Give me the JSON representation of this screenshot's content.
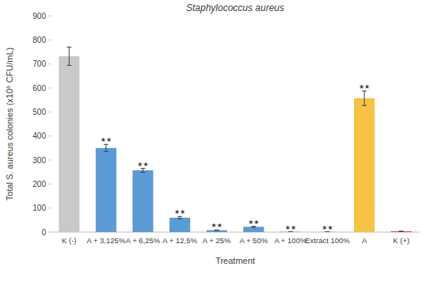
{
  "chart_data": {
    "type": "bar",
    "title": "Staphylococcus aureus",
    "x_label": "Treatment",
    "y_label": "Total S. aureus colonies (x10⁶ CFU/mL)",
    "categories": [
      "K (-)",
      "A + 3,125%",
      "A + 6,25%",
      "A + 12,5%",
      "A + 25%",
      "A + 50%",
      "A + 100%",
      "Extract 100%",
      "A",
      "K (+)"
    ],
    "values": [
      732,
      350,
      257,
      60,
      8,
      22,
      1,
      0.5,
      557,
      3
    ],
    "errors": [
      38,
      15,
      8,
      5,
      1,
      2,
      0.5,
      0.3,
      30,
      1
    ],
    "colors": [
      "#c9c9c9",
      "#5b9bd5",
      "#5b9bd5",
      "#5b9bd5",
      "#5b9bd5",
      "#5b9bd5",
      "#5b9bd5",
      "#5b9bd5",
      "#f6c344",
      "#e2311d"
    ],
    "annotations": [
      null,
      "★★",
      "★★",
      "★★",
      "★★",
      "★★",
      "★★",
      "★★",
      "★★",
      null
    ],
    "ylim": [
      0,
      900
    ],
    "yticks": [
      0,
      100,
      200,
      300,
      400,
      500,
      600,
      700,
      800,
      900
    ],
    "grid": false
  }
}
